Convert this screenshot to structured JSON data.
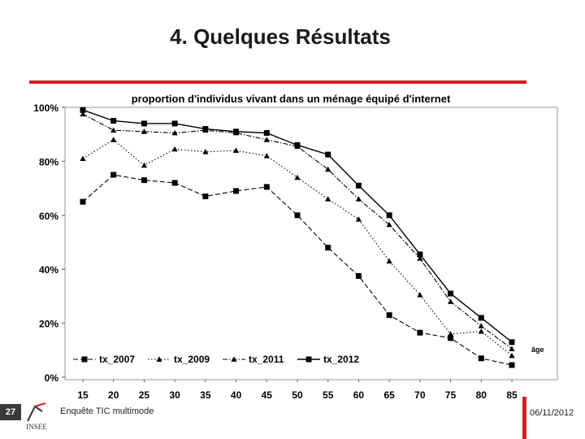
{
  "slide": {
    "title": "4. Quelques Résultats",
    "page_number": "27",
    "footer_left": "Enquête TIC multimode",
    "footer_right": "06/11/2012",
    "logo_text": "INSEE",
    "accent_color": "#d42020"
  },
  "chart_data": {
    "type": "line",
    "title": "proportion d'individus vivant dans un ménage équipé d'internet",
    "xlabel": "âge",
    "ylabel": "",
    "x": [
      15,
      20,
      25,
      30,
      35,
      40,
      45,
      50,
      55,
      60,
      65,
      70,
      75,
      80,
      85
    ],
    "yticks": [
      "0%",
      "20%",
      "40%",
      "60%",
      "80%",
      "100%"
    ],
    "ylim": [
      0,
      100
    ],
    "grid": false,
    "legend_position": "bottom-inside",
    "series": [
      {
        "name": "tx_2007",
        "marker": "square",
        "line": "dashed",
        "values": [
          65,
          75,
          73,
          72,
          67,
          69,
          70.5,
          60,
          48,
          37.5,
          23,
          16.5,
          14.5,
          7,
          4.5
        ]
      },
      {
        "name": "tx_2009",
        "marker": "triangle",
        "line": "dotted",
        "values": [
          81,
          88,
          78.5,
          84.5,
          83.5,
          84,
          82,
          74,
          66,
          58.5,
          43,
          30.5,
          16,
          17,
          8
        ]
      },
      {
        "name": "tx_2011",
        "marker": "triangle",
        "line": "dashdot",
        "values": [
          97.5,
          91.5,
          91,
          90.5,
          91.5,
          90.5,
          88,
          85.5,
          77,
          66,
          56.5,
          44,
          28,
          19,
          10.5
        ]
      },
      {
        "name": "tx_2012",
        "marker": "square",
        "line": "solid",
        "values": [
          99,
          95,
          94,
          94,
          92,
          91,
          90.5,
          86,
          82.5,
          71,
          60,
          45.5,
          31,
          22,
          13
        ]
      }
    ]
  }
}
